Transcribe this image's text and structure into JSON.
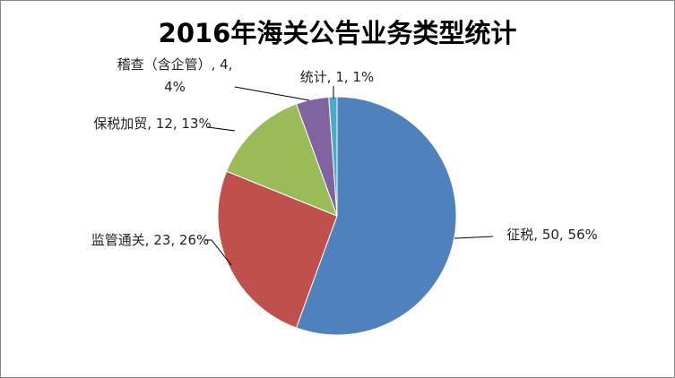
{
  "chart_data": {
    "type": "pie",
    "title": "2016年海关公告业务类型统计",
    "categories": [
      "征税",
      "监管通关",
      "保税加贸",
      "稽查（含企管）",
      "统计"
    ],
    "values": [
      50,
      23,
      12,
      4,
      1
    ],
    "value_labels": [
      "征税, 50, 56%",
      "监管通关, 23, 26%",
      "保税加贸, 12, 13%",
      "稽查（含企管）, 4, 4%",
      "统计, 1, 1%"
    ],
    "colors": [
      "#4f81bd",
      "#c0504d",
      "#9bbb59",
      "#8064a2",
      "#4bacc6"
    ]
  }
}
